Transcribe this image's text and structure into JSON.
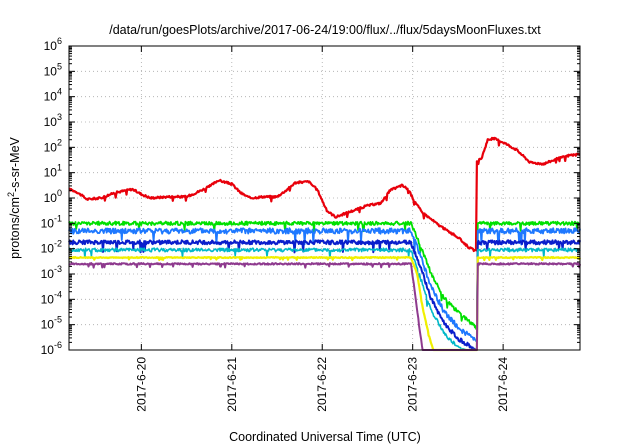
{
  "chart_data": {
    "type": "line",
    "title": "/data/run/goesPlots/archive/2017-06-24/19:00/flux/../flux/5daysMoonFluxes.txt",
    "xlabel": "Coordinated Universal Time (UTC)",
    "ylabel": {
      "prefix": "protons/cm",
      "sup": "2",
      "suffix": "-s-sr-MeV"
    },
    "yscale": "log",
    "ylim_exponents": [
      -6,
      6
    ],
    "y_tick_exponents": [
      -6,
      -5,
      -4,
      -3,
      -2,
      -1,
      0,
      1,
      2,
      3,
      4,
      5,
      6
    ],
    "y_tick_base": "10",
    "xlim_days": [
      19.2,
      24.85
    ],
    "x_ticks": [
      {
        "day": 20,
        "label": "2017-6-20"
      },
      {
        "day": 21,
        "label": "2017-6-21"
      },
      {
        "day": 22,
        "label": "2017-6-22"
      },
      {
        "day": 23,
        "label": "2017-6-23"
      },
      {
        "day": 24,
        "label": "2017-6-24"
      }
    ],
    "grid": true,
    "legend": false,
    "series": [
      {
        "color": "#e8000b",
        "width": 2.2,
        "noise": 0.04,
        "points": [
          [
            19.2,
            0.35
          ],
          [
            19.28,
            0.25
          ],
          [
            19.4,
            -0.05
          ],
          [
            19.55,
            0.0
          ],
          [
            19.7,
            0.2
          ],
          [
            19.9,
            0.35
          ],
          [
            20.0,
            0.15
          ],
          [
            20.1,
            0.0
          ],
          [
            20.3,
            0.05
          ],
          [
            20.5,
            0.05
          ],
          [
            20.6,
            0.2
          ],
          [
            20.75,
            0.45
          ],
          [
            20.85,
            0.7
          ],
          [
            21.0,
            0.55
          ],
          [
            21.1,
            0.2
          ],
          [
            21.2,
            0.0
          ],
          [
            21.35,
            0.05
          ],
          [
            21.5,
            0.05
          ],
          [
            21.6,
            0.3
          ],
          [
            21.7,
            0.6
          ],
          [
            21.85,
            0.65
          ],
          [
            21.95,
            0.3
          ],
          [
            22.05,
            -0.5
          ],
          [
            22.15,
            -0.75
          ],
          [
            22.3,
            -0.55
          ],
          [
            22.5,
            -0.3
          ],
          [
            22.65,
            -0.2
          ],
          [
            22.75,
            0.3
          ],
          [
            22.88,
            0.5
          ],
          [
            22.95,
            0.35
          ],
          [
            23.0,
            0.0
          ],
          [
            23.1,
            -0.55
          ],
          [
            23.3,
            -1.1
          ],
          [
            23.5,
            -1.55
          ],
          [
            23.62,
            -1.95
          ],
          [
            23.7,
            -2.1
          ],
          [
            23.71,
            1.45
          ],
          [
            23.76,
            1.55
          ],
          [
            23.83,
            2.3
          ],
          [
            23.9,
            2.35
          ],
          [
            24.0,
            2.2
          ],
          [
            24.15,
            1.9
          ],
          [
            24.3,
            1.4
          ],
          [
            24.45,
            1.35
          ],
          [
            24.6,
            1.55
          ],
          [
            24.75,
            1.7
          ],
          [
            24.85,
            1.7
          ]
        ]
      },
      {
        "color": "#00e000",
        "width": 1.8,
        "noise": 0.07,
        "points": [
          [
            19.2,
            -1.0
          ],
          [
            22.98,
            -1.0
          ],
          [
            23.1,
            -2.0
          ],
          [
            23.2,
            -2.95
          ],
          [
            23.35,
            -3.95
          ],
          [
            23.5,
            -4.5
          ],
          [
            23.68,
            -5.05
          ],
          [
            23.71,
            -5.15
          ],
          [
            23.72,
            -1.0
          ],
          [
            24.85,
            -1.0
          ]
        ]
      },
      {
        "color": "#1e78ff",
        "width": 1.8,
        "noise": 0.11,
        "points": [
          [
            19.2,
            -1.3
          ],
          [
            22.98,
            -1.3
          ],
          [
            23.1,
            -2.4
          ],
          [
            23.2,
            -3.5
          ],
          [
            23.35,
            -4.5
          ],
          [
            23.5,
            -5.1
          ],
          [
            23.68,
            -5.6
          ],
          [
            23.71,
            -5.7
          ],
          [
            23.72,
            -1.3
          ],
          [
            24.85,
            -1.3
          ]
        ]
      },
      {
        "color": "#0a1ecc",
        "width": 2.0,
        "noise": 0.08,
        "points": [
          [
            19.2,
            -1.75
          ],
          [
            22.98,
            -1.75
          ],
          [
            23.1,
            -2.85
          ],
          [
            23.2,
            -3.95
          ],
          [
            23.35,
            -4.95
          ],
          [
            23.5,
            -5.55
          ],
          [
            23.68,
            -5.95
          ],
          [
            23.71,
            -6.0
          ],
          [
            23.72,
            -1.75
          ],
          [
            24.85,
            -1.75
          ]
        ]
      },
      {
        "color": "#00b8c8",
        "width": 1.6,
        "noise": 0.07,
        "points": [
          [
            19.2,
            -2.05
          ],
          [
            22.98,
            -2.05
          ],
          [
            23.1,
            -3.3
          ],
          [
            23.2,
            -4.4
          ],
          [
            23.35,
            -5.35
          ],
          [
            23.5,
            -5.9
          ],
          [
            23.6,
            -6.0
          ],
          [
            23.71,
            -6.0
          ],
          [
            23.72,
            -2.05
          ],
          [
            24.85,
            -2.05
          ]
        ]
      },
      {
        "color": "#f0f000",
        "width": 2.2,
        "noise": 0.02,
        "points": [
          [
            19.2,
            -2.35
          ],
          [
            22.98,
            -2.35
          ],
          [
            23.05,
            -3.0
          ],
          [
            23.12,
            -4.5
          ],
          [
            23.2,
            -5.7
          ],
          [
            23.23,
            -6.0
          ],
          [
            23.71,
            -6.0
          ],
          [
            23.72,
            -2.35
          ],
          [
            24.85,
            -2.35
          ]
        ]
      },
      {
        "color": "#8e3a8e",
        "width": 2.0,
        "noise": 0.03,
        "points": [
          [
            19.2,
            -2.6
          ],
          [
            22.98,
            -2.6
          ],
          [
            23.02,
            -3.6
          ],
          [
            23.07,
            -5.0
          ],
          [
            23.11,
            -6.0
          ],
          [
            23.71,
            -6.0
          ],
          [
            23.72,
            -2.6
          ],
          [
            24.85,
            -2.6
          ]
        ]
      }
    ]
  }
}
